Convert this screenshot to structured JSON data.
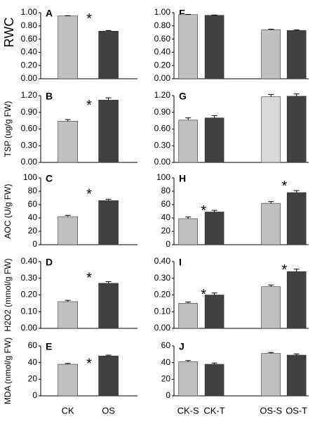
{
  "chart_data": [
    {
      "type": "bar",
      "panel": "A",
      "ylabel": "RWC",
      "values": [
        0.95,
        0.72
      ],
      "errors": [
        0.004,
        0.01
      ],
      "colors": [
        "#c0c0c0",
        "#404040"
      ],
      "ylim": [
        0,
        1
      ],
      "yticks": [
        {
          "value": 0,
          "label": "0.00"
        },
        {
          "value": 0.2,
          "label": "0.20"
        },
        {
          "value": 0.4,
          "label": "0.40"
        },
        {
          "value": 0.6,
          "label": "0.60"
        },
        {
          "value": 0.8,
          "label": "0.80"
        },
        {
          "value": 1,
          "label": "1.00"
        }
      ],
      "annotations": [
        "*"
      ]
    },
    {
      "type": "bar",
      "panel": "B",
      "ylabel": "TSP (ug/g FW)",
      "values": [
        0.74,
        1.12
      ],
      "errors": [
        0.03,
        0.04
      ],
      "colors": [
        "#c0c0c0",
        "#404040"
      ],
      "ylim": [
        0,
        1.2
      ],
      "yticks": [
        {
          "value": 0,
          "label": "0.00"
        },
        {
          "value": 0.3,
          "label": "0.30"
        },
        {
          "value": 0.6,
          "label": "0.60"
        },
        {
          "value": 0.9,
          "label": "0.90"
        },
        {
          "value": 1.2,
          "label": "1.20"
        }
      ],
      "annotations": [
        "*"
      ]
    },
    {
      "type": "bar",
      "panel": "C",
      "ylabel": "AOC (U/g FW)",
      "values": [
        42,
        66
      ],
      "errors": [
        2,
        2
      ],
      "colors": [
        "#c0c0c0",
        "#404040"
      ],
      "ylim": [
        0,
        100
      ],
      "yticks": [
        0,
        20,
        40,
        60,
        80,
        100
      ],
      "annotations": [
        "*"
      ]
    },
    {
      "type": "bar",
      "panel": "D",
      "ylabel": "H2O2 (mmol/g FW)",
      "values": [
        0.16,
        0.27
      ],
      "errors": [
        0.008,
        0.01
      ],
      "colors": [
        "#c0c0c0",
        "#404040"
      ],
      "ylim": [
        0,
        0.4
      ],
      "yticks": [
        {
          "value": 0,
          "label": "0.00"
        },
        {
          "value": 0.1,
          "label": "0.10"
        },
        {
          "value": 0.2,
          "label": "0.20"
        },
        {
          "value": 0.3,
          "label": "0.30"
        },
        {
          "value": 0.4,
          "label": "0.40"
        }
      ],
      "annotations": [
        "*"
      ]
    },
    {
      "type": "bar",
      "panel": "E",
      "ylabel": "MDA (nmol/g FW)",
      "categories": [
        "CK",
        "OS"
      ],
      "values": [
        38,
        48
      ],
      "errors": [
        1,
        1
      ],
      "colors": [
        "#c0c0c0",
        "#404040"
      ],
      "ylim": [
        0,
        60
      ],
      "yticks": [
        0,
        20,
        40,
        60
      ],
      "annotations": [
        "*"
      ]
    },
    {
      "type": "bar",
      "panel": "F",
      "values": [
        0.97,
        0.96,
        0.74,
        0.73
      ],
      "errors": [
        0.004,
        0.004,
        0.01,
        0.01
      ],
      "colors": [
        "#c0c0c0",
        "#404040",
        "#c0c0c0",
        "#404040"
      ],
      "ylim": [
        0,
        1
      ],
      "yticks": [
        {
          "value": 0,
          "label": "0.00"
        },
        {
          "value": 0.2,
          "label": "0.20"
        },
        {
          "value": 0.4,
          "label": "0.40"
        },
        {
          "value": 0.6,
          "label": "0.60"
        },
        {
          "value": 0.8,
          "label": "0.80"
        },
        {
          "value": 1,
          "label": "1.00"
        }
      ]
    },
    {
      "type": "bar",
      "panel": "G",
      "values": [
        0.76,
        0.8,
        1.18,
        1.19
      ],
      "errors": [
        0.04,
        0.04,
        0.04,
        0.04
      ],
      "colors": [
        "#c0c0c0",
        "#404040",
        "#d9d9d9",
        "#404040"
      ],
      "ylim": [
        0,
        1.2
      ],
      "yticks": [
        {
          "value": 0,
          "label": "0.00"
        },
        {
          "value": 0.3,
          "label": "0.30"
        },
        {
          "value": 0.6,
          "label": "0.60"
        },
        {
          "value": 0.9,
          "label": "0.90"
        },
        {
          "value": 1.2,
          "label": "1.20"
        }
      ]
    },
    {
      "type": "bar",
      "panel": "H",
      "values": [
        39,
        49,
        62,
        78
      ],
      "errors": [
        2.5,
        2.5,
        2.5,
        3
      ],
      "colors": [
        "#c0c0c0",
        "#404040",
        "#c0c0c0",
        "#404040"
      ],
      "ylim": [
        0,
        100
      ],
      "yticks": [
        0,
        20,
        40,
        60,
        80,
        100
      ],
      "annotations": [
        "*",
        "*"
      ]
    },
    {
      "type": "bar",
      "panel": "I",
      "values": [
        0.15,
        0.2,
        0.25,
        0.34
      ],
      "errors": [
        0.008,
        0.012,
        0.01,
        0.015
      ],
      "colors": [
        "#c0c0c0",
        "#404040",
        "#c0c0c0",
        "#404040"
      ],
      "ylim": [
        0,
        0.4
      ],
      "yticks": [
        {
          "value": 0,
          "label": "0.00"
        },
        {
          "value": 0.1,
          "label": "0.10"
        },
        {
          "value": 0.2,
          "label": "0.20"
        },
        {
          "value": 0.3,
          "label": "0.30"
        },
        {
          "value": 0.4,
          "label": "0.40"
        }
      ],
      "annotations": [
        "*",
        "*"
      ]
    },
    {
      "type": "bar",
      "panel": "J",
      "categories": [
        "CK-S",
        "CK-T",
        "OS-S",
        "OS-T"
      ],
      "values": [
        41,
        38,
        51,
        49
      ],
      "errors": [
        1.5,
        1.5,
        1.2,
        1.5
      ],
      "colors": [
        "#c0c0c0",
        "#404040",
        "#c0c0c0",
        "#404040"
      ],
      "ylim": [
        0,
        60
      ],
      "yticks": [
        0,
        20,
        40,
        60
      ]
    }
  ]
}
